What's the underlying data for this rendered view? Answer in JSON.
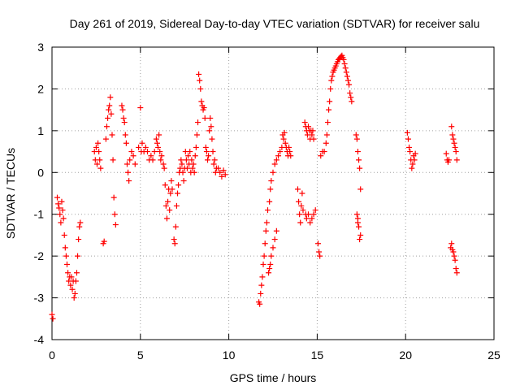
{
  "chart_data": {
    "type": "scatter",
    "title": "Day 261 of 2019, Sidereal Day-to-day VTEC variation (SDTVAR) for receiver salu",
    "xlabel": "GPS time / hours",
    "ylabel": "SDTVAR / TECUs",
    "xlim": [
      0,
      25
    ],
    "ylim": [
      -4,
      3
    ],
    "xticks": [
      "0",
      "5",
      "10",
      "15",
      "20",
      "25"
    ],
    "yticks": [
      "-4",
      "-3",
      "-2",
      "-1",
      "0",
      "1",
      "2",
      "3"
    ],
    "xtick_values": [
      0,
      5,
      10,
      15,
      20,
      25
    ],
    "ytick_values": [
      -4,
      -3,
      -2,
      -1,
      0,
      1,
      2,
      3
    ],
    "grid": true,
    "legend": "none",
    "marker": "plus",
    "series": [
      {
        "name": "SDTVAR",
        "color": "#ff0000",
        "points": [
          [
            0.0,
            -3.4
          ],
          [
            0.05,
            -3.5
          ],
          [
            0.3,
            -0.6
          ],
          [
            0.35,
            -0.75
          ],
          [
            0.4,
            -0.85
          ],
          [
            0.45,
            -1.0
          ],
          [
            0.5,
            -1.2
          ],
          [
            0.55,
            -0.7
          ],
          [
            0.6,
            -0.9
          ],
          [
            0.65,
            -1.1
          ],
          [
            0.7,
            -1.5
          ],
          [
            0.75,
            -1.8
          ],
          [
            0.8,
            -2.0
          ],
          [
            0.85,
            -2.2
          ],
          [
            0.9,
            -2.4
          ],
          [
            0.95,
            -2.6
          ],
          [
            1.0,
            -2.5
          ],
          [
            1.05,
            -2.7
          ],
          [
            1.1,
            -2.5
          ],
          [
            1.15,
            -2.8
          ],
          [
            1.2,
            -2.6
          ],
          [
            1.25,
            -3.0
          ],
          [
            1.3,
            -2.9
          ],
          [
            1.35,
            -2.6
          ],
          [
            1.4,
            -2.4
          ],
          [
            1.45,
            -2.0
          ],
          [
            1.5,
            -1.6
          ],
          [
            1.55,
            -1.3
          ],
          [
            1.6,
            -1.2
          ],
          [
            2.4,
            0.5
          ],
          [
            2.45,
            0.3
          ],
          [
            2.5,
            0.6
          ],
          [
            2.55,
            0.2
          ],
          [
            2.6,
            0.7
          ],
          [
            2.65,
            0.5
          ],
          [
            2.7,
            0.3
          ],
          [
            2.75,
            0.1
          ],
          [
            2.9,
            -1.7
          ],
          [
            2.95,
            -1.65
          ],
          [
            3.05,
            0.8
          ],
          [
            3.1,
            1.1
          ],
          [
            3.15,
            1.3
          ],
          [
            3.2,
            1.5
          ],
          [
            3.25,
            1.6
          ],
          [
            3.3,
            1.8
          ],
          [
            3.35,
            1.4
          ],
          [
            3.4,
            0.9
          ],
          [
            3.45,
            0.3
          ],
          [
            3.5,
            -0.6
          ],
          [
            3.55,
            -1.0
          ],
          [
            3.6,
            -1.25
          ],
          [
            3.95,
            1.6
          ],
          [
            4.0,
            1.5
          ],
          [
            4.05,
            1.3
          ],
          [
            4.1,
            1.2
          ],
          [
            4.15,
            0.9
          ],
          [
            4.2,
            0.7
          ],
          [
            4.25,
            0.2
          ],
          [
            4.3,
            0.0
          ],
          [
            4.35,
            -0.2
          ],
          [
            4.4,
            0.3
          ],
          [
            4.5,
            0.5
          ],
          [
            4.6,
            0.4
          ],
          [
            4.7,
            0.2
          ],
          [
            4.9,
            0.6
          ],
          [
            5.0,
            1.55
          ],
          [
            5.05,
            0.5
          ],
          [
            5.1,
            0.7
          ],
          [
            5.2,
            0.5
          ],
          [
            5.3,
            0.6
          ],
          [
            5.4,
            0.5
          ],
          [
            5.5,
            0.3
          ],
          [
            5.6,
            0.4
          ],
          [
            5.7,
            0.3
          ],
          [
            5.8,
            0.5
          ],
          [
            5.9,
            0.8
          ],
          [
            5.95,
            0.7
          ],
          [
            6.0,
            0.6
          ],
          [
            6.05,
            0.9
          ],
          [
            6.1,
            0.5
          ],
          [
            6.15,
            0.3
          ],
          [
            6.2,
            0.4
          ],
          [
            6.3,
            0.2
          ],
          [
            6.35,
            0.1
          ],
          [
            6.4,
            -0.3
          ],
          [
            6.45,
            -0.8
          ],
          [
            6.5,
            -1.1
          ],
          [
            6.55,
            -0.7
          ],
          [
            6.6,
            -0.4
          ],
          [
            6.65,
            -0.9
          ],
          [
            6.7,
            -0.5
          ],
          [
            6.75,
            -0.2
          ],
          [
            6.8,
            -0.4
          ],
          [
            6.9,
            -1.6
          ],
          [
            6.95,
            -1.7
          ],
          [
            7.0,
            -1.3
          ],
          [
            7.05,
            -0.8
          ],
          [
            7.1,
            -0.5
          ],
          [
            7.15,
            -0.3
          ],
          [
            7.2,
            0.0
          ],
          [
            7.25,
            0.1
          ],
          [
            7.3,
            0.3
          ],
          [
            7.35,
            0.2
          ],
          [
            7.4,
            0.0
          ],
          [
            7.45,
            -0.2
          ],
          [
            7.5,
            0.1
          ],
          [
            7.55,
            0.5
          ],
          [
            7.6,
            0.3
          ],
          [
            7.65,
            0.1
          ],
          [
            7.7,
            0.4
          ],
          [
            7.75,
            0.2
          ],
          [
            7.8,
            0.5
          ],
          [
            7.85,
            0.0
          ],
          [
            7.9,
            0.3
          ],
          [
            7.95,
            0.1
          ],
          [
            8.0,
            0.2
          ],
          [
            8.05,
            0.0
          ],
          [
            8.1,
            0.4
          ],
          [
            8.15,
            0.6
          ],
          [
            8.2,
            0.9
          ],
          [
            8.25,
            1.2
          ],
          [
            8.3,
            2.35
          ],
          [
            8.35,
            2.2
          ],
          [
            8.4,
            2.0
          ],
          [
            8.45,
            1.7
          ],
          [
            8.5,
            1.6
          ],
          [
            8.55,
            1.5
          ],
          [
            8.6,
            1.55
          ],
          [
            8.65,
            1.3
          ],
          [
            8.7,
            0.6
          ],
          [
            8.75,
            0.5
          ],
          [
            8.8,
            0.3
          ],
          [
            8.85,
            0.4
          ],
          [
            8.9,
            1.0
          ],
          [
            8.95,
            1.3
          ],
          [
            9.0,
            1.1
          ],
          [
            9.05,
            0.8
          ],
          [
            9.1,
            0.5
          ],
          [
            9.15,
            0.2
          ],
          [
            9.2,
            0.3
          ],
          [
            9.25,
            0.0
          ],
          [
            9.3,
            0.1
          ],
          [
            9.4,
            0.1
          ],
          [
            9.5,
            0.0
          ],
          [
            9.6,
            -0.1
          ],
          [
            9.7,
            0.05
          ],
          [
            9.8,
            -0.05
          ],
          [
            11.7,
            -3.1
          ],
          [
            11.75,
            -3.15
          ],
          [
            11.8,
            -2.9
          ],
          [
            11.85,
            -2.7
          ],
          [
            11.9,
            -2.5
          ],
          [
            11.95,
            -2.2
          ],
          [
            12.0,
            -2.0
          ],
          [
            12.05,
            -1.7
          ],
          [
            12.1,
            -1.4
          ],
          [
            12.15,
            -1.2
          ],
          [
            12.2,
            -0.9
          ],
          [
            12.25,
            -2.4
          ],
          [
            12.3,
            -2.3
          ],
          [
            12.35,
            -2.2
          ],
          [
            12.4,
            -2.0
          ],
          [
            12.5,
            -1.8
          ],
          [
            12.6,
            -1.6
          ],
          [
            12.7,
            -1.4
          ],
          [
            12.3,
            -0.7
          ],
          [
            12.35,
            -0.4
          ],
          [
            12.4,
            -0.2
          ],
          [
            12.5,
            0.0
          ],
          [
            12.6,
            0.2
          ],
          [
            12.7,
            0.3
          ],
          [
            12.8,
            0.4
          ],
          [
            12.9,
            0.5
          ],
          [
            13.0,
            0.6
          ],
          [
            13.05,
            0.9
          ],
          [
            13.1,
            0.8
          ],
          [
            13.15,
            0.95
          ],
          [
            13.2,
            0.7
          ],
          [
            13.25,
            0.6
          ],
          [
            13.3,
            0.5
          ],
          [
            13.35,
            0.4
          ],
          [
            13.4,
            0.6
          ],
          [
            13.45,
            0.5
          ],
          [
            13.5,
            0.4
          ],
          [
            13.9,
            -0.4
          ],
          [
            13.95,
            -0.7
          ],
          [
            14.0,
            -1.0
          ],
          [
            14.05,
            -1.2
          ],
          [
            14.1,
            -0.8
          ],
          [
            14.15,
            -0.5
          ],
          [
            14.2,
            -0.9
          ],
          [
            14.3,
            1.2
          ],
          [
            14.35,
            1.1
          ],
          [
            14.4,
            1.0
          ],
          [
            14.45,
            0.9
          ],
          [
            14.5,
            1.1
          ],
          [
            14.55,
            1.0
          ],
          [
            14.6,
            0.8
          ],
          [
            14.65,
            1.0
          ],
          [
            14.7,
            0.9
          ],
          [
            14.75,
            1.0
          ],
          [
            14.8,
            0.8
          ],
          [
            14.35,
            -1.0
          ],
          [
            14.4,
            -1.1
          ],
          [
            14.5,
            -1.0
          ],
          [
            14.6,
            -1.2
          ],
          [
            14.7,
            -1.1
          ],
          [
            14.8,
            -1.0
          ],
          [
            14.9,
            -0.9
          ],
          [
            15.05,
            -1.7
          ],
          [
            15.1,
            -1.9
          ],
          [
            15.15,
            -2.0
          ],
          [
            15.2,
            0.4
          ],
          [
            15.3,
            0.5
          ],
          [
            15.4,
            0.5
          ],
          [
            15.5,
            0.7
          ],
          [
            15.55,
            0.9
          ],
          [
            15.6,
            1.2
          ],
          [
            15.65,
            1.5
          ],
          [
            15.7,
            1.7
          ],
          [
            15.75,
            2.0
          ],
          [
            15.8,
            2.2
          ],
          [
            15.85,
            2.3
          ],
          [
            15.9,
            2.4
          ],
          [
            15.95,
            2.45
          ],
          [
            16.0,
            2.5
          ],
          [
            16.05,
            2.55
          ],
          [
            16.1,
            2.6
          ],
          [
            16.15,
            2.65
          ],
          [
            16.2,
            2.7
          ],
          [
            16.25,
            2.72
          ],
          [
            16.3,
            2.75
          ],
          [
            16.35,
            2.78
          ],
          [
            16.4,
            2.8
          ],
          [
            16.45,
            2.75
          ],
          [
            16.5,
            2.7
          ],
          [
            16.55,
            2.6
          ],
          [
            16.6,
            2.5
          ],
          [
            16.65,
            2.4
          ],
          [
            16.7,
            2.3
          ],
          [
            16.75,
            2.2
          ],
          [
            16.8,
            2.1
          ],
          [
            16.85,
            1.9
          ],
          [
            16.9,
            1.8
          ],
          [
            16.95,
            1.7
          ],
          [
            17.2,
            0.9
          ],
          [
            17.25,
            0.8
          ],
          [
            17.3,
            0.5
          ],
          [
            17.35,
            0.3
          ],
          [
            17.4,
            0.1
          ],
          [
            17.45,
            -0.4
          ],
          [
            17.25,
            -1.0
          ],
          [
            17.3,
            -1.1
          ],
          [
            17.35,
            -1.3
          ],
          [
            17.4,
            -1.6
          ],
          [
            17.45,
            -1.5
          ],
          [
            17.3,
            -1.2
          ],
          [
            20.1,
            0.95
          ],
          [
            20.15,
            0.8
          ],
          [
            20.2,
            0.6
          ],
          [
            20.25,
            0.5
          ],
          [
            20.3,
            0.3
          ],
          [
            20.35,
            0.1
          ],
          [
            20.4,
            0.2
          ],
          [
            20.45,
            0.4
          ],
          [
            20.5,
            0.3
          ],
          [
            20.55,
            0.45
          ],
          [
            22.3,
            0.45
          ],
          [
            22.35,
            0.3
          ],
          [
            22.4,
            0.25
          ],
          [
            22.45,
            0.3
          ],
          [
            22.6,
            1.1
          ],
          [
            22.65,
            0.9
          ],
          [
            22.7,
            0.8
          ],
          [
            22.75,
            0.7
          ],
          [
            22.8,
            0.6
          ],
          [
            22.85,
            0.5
          ],
          [
            22.9,
            0.3
          ],
          [
            22.55,
            -1.8
          ],
          [
            22.6,
            -1.7
          ],
          [
            22.65,
            -1.85
          ],
          [
            22.7,
            -1.9
          ],
          [
            22.75,
            -2.0
          ],
          [
            22.8,
            -2.1
          ],
          [
            22.85,
            -2.3
          ],
          [
            22.9,
            -2.4
          ]
        ]
      }
    ]
  }
}
